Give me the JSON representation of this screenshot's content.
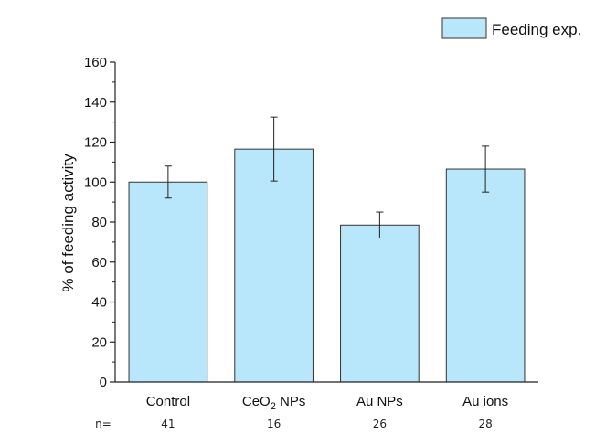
{
  "chart_data": {
    "type": "bar",
    "title": "",
    "xlabel": "",
    "ylabel": "% of feeding activity",
    "ylim": [
      0,
      160
    ],
    "yticks": [
      0,
      20,
      40,
      60,
      80,
      100,
      120,
      140,
      160
    ],
    "categories": [
      "Control",
      "CeO2 NPs",
      "Au NPs",
      "Au ions"
    ],
    "series": [
      {
        "name": "Feeding exp.",
        "values": [
          100,
          116.5,
          78.5,
          106.5
        ],
        "errors": [
          8,
          16,
          6.5,
          11.5
        ],
        "color": "#b8e6fb"
      }
    ],
    "n_prefix": "n=",
    "n_values": [
      "41",
      "16",
      "26",
      "28"
    ],
    "legend": {
      "label": "Feeding exp.",
      "position": "top-right"
    },
    "grid": false
  }
}
